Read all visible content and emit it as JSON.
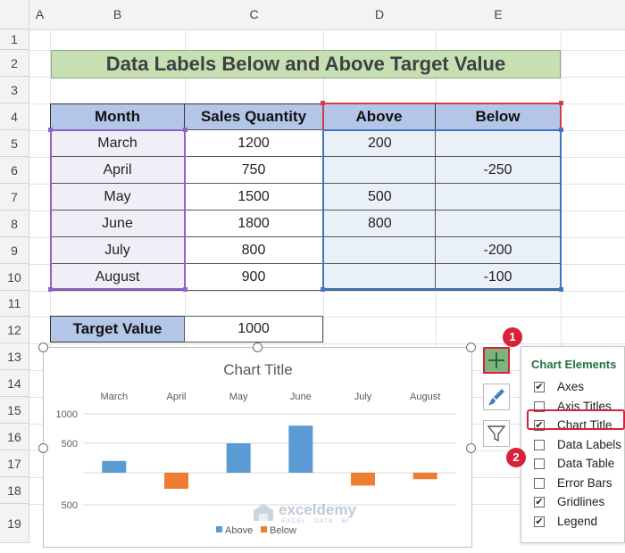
{
  "columns": [
    "A",
    "B",
    "C",
    "D",
    "E"
  ],
  "rows": [
    "1",
    "2",
    "3",
    "4",
    "5",
    "6",
    "7",
    "8",
    "9",
    "10",
    "11",
    "12",
    "13",
    "14",
    "15",
    "16",
    "17",
    "18",
    "19"
  ],
  "banner": "Data Labels Below and Above Target Value",
  "table": {
    "headers": [
      "Month",
      "Sales Quantity",
      "Above",
      "Below"
    ],
    "rows": [
      {
        "month": "March",
        "sales": "1200",
        "above": "200",
        "below": ""
      },
      {
        "month": "April",
        "sales": "750",
        "above": "",
        "below": "-250"
      },
      {
        "month": "May",
        "sales": "1500",
        "above": "500",
        "below": ""
      },
      {
        "month": "June",
        "sales": "1800",
        "above": "800",
        "below": ""
      },
      {
        "month": "July",
        "sales": "800",
        "above": "",
        "below": "-200"
      },
      {
        "month": "August",
        "sales": "900",
        "above": "",
        "below": "-100"
      }
    ]
  },
  "target": {
    "label": "Target Value",
    "value": "1000"
  },
  "chart_data": {
    "type": "bar",
    "title": "Chart Title",
    "categories": [
      "March",
      "April",
      "May",
      "June",
      "July",
      "August"
    ],
    "series": [
      {
        "name": "Above",
        "color": "#5b9bd5",
        "values": [
          200,
          0,
          500,
          800,
          0,
          0
        ]
      },
      {
        "name": "Below",
        "color": "#ed7d31",
        "values": [
          0,
          -250,
          0,
          0,
          -200,
          -100
        ]
      }
    ],
    "y_tick_labels": [
      "1000",
      "500",
      "",
      "500"
    ],
    "y_ticks": [
      1000,
      500,
      0,
      -500
    ],
    "ylim": [
      -500,
      1000
    ],
    "legend": "bottom",
    "grid": true
  },
  "side_buttons": [
    {
      "name": "chart-elements-button",
      "icon": "plus-icon"
    },
    {
      "name": "chart-styles-button",
      "icon": "brush-icon"
    },
    {
      "name": "chart-filters-button",
      "icon": "filter-icon"
    }
  ],
  "panel": {
    "title": "Chart Elements",
    "items": [
      {
        "label": "Axes",
        "checked": true
      },
      {
        "label": "Axis Titles",
        "checked": false
      },
      {
        "label": "Chart Title",
        "checked": true
      },
      {
        "label": "Data Labels",
        "checked": false
      },
      {
        "label": "Data Table",
        "checked": false
      },
      {
        "label": "Error Bars",
        "checked": false
      },
      {
        "label": "Gridlines",
        "checked": true
      },
      {
        "label": "Legend",
        "checked": true
      }
    ]
  },
  "badges": [
    "1",
    "2"
  ],
  "watermark": {
    "brand": "exceldemy",
    "tagline": "EXCEL · DATA · BI"
  },
  "colors": {
    "accent_green": "#217346",
    "highlight_red": "#d6233a",
    "header_blue": "#b4c6e7",
    "banner_green": "#c6e0b4"
  }
}
